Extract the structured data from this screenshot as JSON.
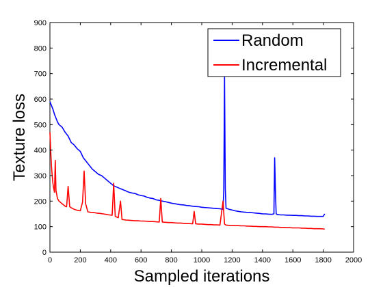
{
  "chart_data": {
    "type": "line",
    "title": "",
    "xlabel": "Sampled iterations",
    "ylabel": "Texture loss",
    "xlim": [
      0,
      2000
    ],
    "ylim": [
      0,
      900
    ],
    "xticks": [
      0,
      200,
      400,
      600,
      800,
      1000,
      1200,
      1400,
      1600,
      1800,
      2000
    ],
    "yticks": [
      0,
      100,
      200,
      300,
      400,
      500,
      600,
      700,
      800,
      900
    ],
    "grid": false,
    "legend_position": "top-right",
    "series": [
      {
        "name": "Random",
        "color": "#0000ff",
        "points": [
          [
            0,
            590
          ],
          [
            10,
            575
          ],
          [
            20,
            560
          ],
          [
            30,
            540
          ],
          [
            40,
            525
          ],
          [
            50,
            510
          ],
          [
            60,
            500
          ],
          [
            80,
            490
          ],
          [
            100,
            470
          ],
          [
            120,
            455
          ],
          [
            140,
            430
          ],
          [
            160,
            420
          ],
          [
            180,
            405
          ],
          [
            200,
            395
          ],
          [
            220,
            370
          ],
          [
            240,
            355
          ],
          [
            260,
            340
          ],
          [
            280,
            325
          ],
          [
            300,
            315
          ],
          [
            320,
            305
          ],
          [
            340,
            300
          ],
          [
            360,
            290
          ],
          [
            380,
            280
          ],
          [
            400,
            270
          ],
          [
            420,
            260
          ],
          [
            440,
            255
          ],
          [
            460,
            250
          ],
          [
            480,
            245
          ],
          [
            500,
            240
          ],
          [
            520,
            235
          ],
          [
            540,
            232
          ],
          [
            560,
            230
          ],
          [
            580,
            225
          ],
          [
            600,
            222
          ],
          [
            620,
            220
          ],
          [
            640,
            215
          ],
          [
            660,
            212
          ],
          [
            680,
            210
          ],
          [
            700,
            205
          ],
          [
            720,
            203
          ],
          [
            740,
            200
          ],
          [
            760,
            198
          ],
          [
            780,
            195
          ],
          [
            800,
            192
          ],
          [
            820,
            190
          ],
          [
            840,
            188
          ],
          [
            860,
            186
          ],
          [
            880,
            185
          ],
          [
            900,
            183
          ],
          [
            920,
            182
          ],
          [
            940,
            180
          ],
          [
            960,
            179
          ],
          [
            980,
            178
          ],
          [
            1000,
            176
          ],
          [
            1020,
            175
          ],
          [
            1040,
            174
          ],
          [
            1060,
            173
          ],
          [
            1080,
            172
          ],
          [
            1100,
            171
          ],
          [
            1120,
            170
          ],
          [
            1140,
            168
          ],
          [
            1145,
            240
          ],
          [
            1150,
            690
          ],
          [
            1155,
            250
          ],
          [
            1160,
            172
          ],
          [
            1180,
            168
          ],
          [
            1200,
            165
          ],
          [
            1220,
            162
          ],
          [
            1240,
            160
          ],
          [
            1260,
            158
          ],
          [
            1280,
            157
          ],
          [
            1300,
            156
          ],
          [
            1320,
            155
          ],
          [
            1340,
            154
          ],
          [
            1360,
            153
          ],
          [
            1380,
            152
          ],
          [
            1400,
            150
          ],
          [
            1420,
            150
          ],
          [
            1440,
            149
          ],
          [
            1460,
            148
          ],
          [
            1475,
            150
          ],
          [
            1480,
            370
          ],
          [
            1485,
            240
          ],
          [
            1490,
            150
          ],
          [
            1500,
            147
          ],
          [
            1520,
            146
          ],
          [
            1540,
            146
          ],
          [
            1560,
            145
          ],
          [
            1580,
            145
          ],
          [
            1600,
            144
          ],
          [
            1620,
            144
          ],
          [
            1640,
            143
          ],
          [
            1660,
            143
          ],
          [
            1680,
            142
          ],
          [
            1700,
            142
          ],
          [
            1720,
            141
          ],
          [
            1740,
            141
          ],
          [
            1760,
            140
          ],
          [
            1780,
            140
          ],
          [
            1800,
            140
          ],
          [
            1810,
            150
          ]
        ]
      },
      {
        "name": "Incremental",
        "color": "#ff0000",
        "points": [
          [
            0,
            470
          ],
          [
            5,
            400
          ],
          [
            10,
            340
          ],
          [
            15,
            300
          ],
          [
            20,
            270
          ],
          [
            25,
            250
          ],
          [
            30,
            235
          ],
          [
            35,
            360
          ],
          [
            40,
            240
          ],
          [
            45,
            225
          ],
          [
            50,
            210
          ],
          [
            60,
            200
          ],
          [
            70,
            195
          ],
          [
            80,
            190
          ],
          [
            90,
            185
          ],
          [
            100,
            180
          ],
          [
            110,
            178
          ],
          [
            120,
            258
          ],
          [
            130,
            178
          ],
          [
            140,
            174
          ],
          [
            150,
            171
          ],
          [
            160,
            168
          ],
          [
            170,
            166
          ],
          [
            180,
            164
          ],
          [
            200,
            162
          ],
          [
            215,
            196
          ],
          [
            225,
            318
          ],
          [
            235,
            190
          ],
          [
            250,
            158
          ],
          [
            270,
            156
          ],
          [
            290,
            155
          ],
          [
            310,
            153
          ],
          [
            330,
            152
          ],
          [
            350,
            150
          ],
          [
            370,
            148
          ],
          [
            390,
            146
          ],
          [
            410,
            145
          ],
          [
            420,
            270
          ],
          [
            430,
            140
          ],
          [
            450,
            135
          ],
          [
            465,
            200
          ],
          [
            475,
            128
          ],
          [
            500,
            126
          ],
          [
            520,
            125
          ],
          [
            540,
            124
          ],
          [
            560,
            123
          ],
          [
            580,
            123
          ],
          [
            600,
            122
          ],
          [
            620,
            122
          ],
          [
            640,
            121
          ],
          [
            660,
            120
          ],
          [
            680,
            120
          ],
          [
            700,
            119
          ],
          [
            720,
            118
          ],
          [
            730,
            210
          ],
          [
            740,
            118
          ],
          [
            760,
            117
          ],
          [
            780,
            116
          ],
          [
            800,
            116
          ],
          [
            820,
            115
          ],
          [
            840,
            114
          ],
          [
            860,
            114
          ],
          [
            880,
            113
          ],
          [
            900,
            112
          ],
          [
            920,
            112
          ],
          [
            940,
            111
          ],
          [
            950,
            160
          ],
          [
            960,
            111
          ],
          [
            980,
            110
          ],
          [
            1000,
            110
          ],
          [
            1020,
            109
          ],
          [
            1040,
            108
          ],
          [
            1060,
            108
          ],
          [
            1080,
            107
          ],
          [
            1100,
            107
          ],
          [
            1120,
            106
          ],
          [
            1140,
            200
          ],
          [
            1150,
            110
          ],
          [
            1160,
            106
          ],
          [
            1180,
            105
          ],
          [
            1200,
            105
          ],
          [
            1220,
            104
          ],
          [
            1240,
            104
          ],
          [
            1260,
            103
          ],
          [
            1280,
            103
          ],
          [
            1300,
            102
          ],
          [
            1320,
            102
          ],
          [
            1340,
            101
          ],
          [
            1360,
            101
          ],
          [
            1380,
            100
          ],
          [
            1400,
            100
          ],
          [
            1420,
            100
          ],
          [
            1440,
            99
          ],
          [
            1460,
            99
          ],
          [
            1480,
            98
          ],
          [
            1500,
            98
          ],
          [
            1520,
            97
          ],
          [
            1540,
            97
          ],
          [
            1560,
            96
          ],
          [
            1580,
            96
          ],
          [
            1600,
            95
          ],
          [
            1620,
            95
          ],
          [
            1640,
            95
          ],
          [
            1660,
            94
          ],
          [
            1680,
            94
          ],
          [
            1700,
            93
          ],
          [
            1720,
            93
          ],
          [
            1740,
            92
          ],
          [
            1760,
            92
          ],
          [
            1780,
            92
          ],
          [
            1800,
            91
          ],
          [
            1810,
            90
          ]
        ]
      }
    ]
  }
}
